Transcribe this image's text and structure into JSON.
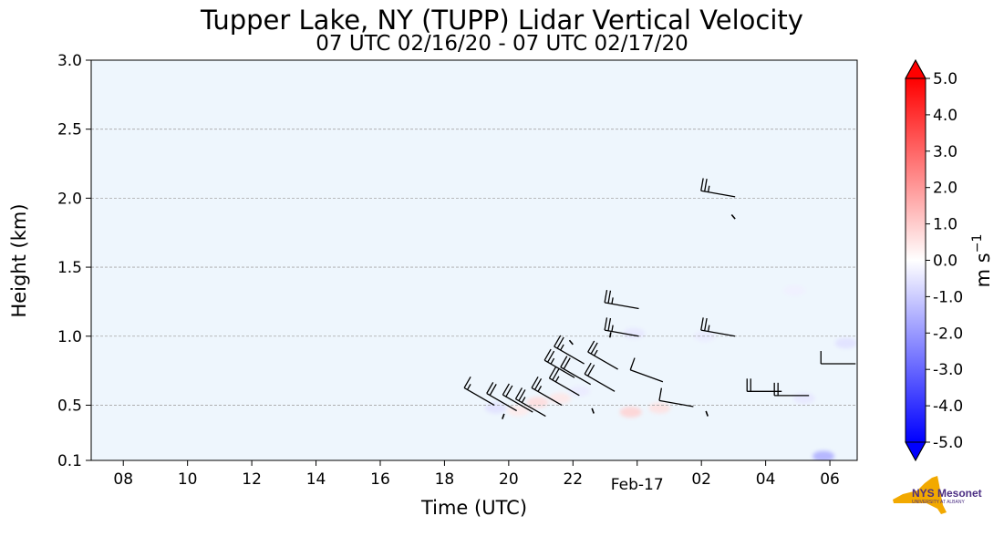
{
  "chart_data": {
    "type": "heatmap",
    "title": "Tupper Lake, NY (TUPP) Lidar Vertical Velocity",
    "subtitle": "07 UTC 02/16/20 - 07 UTC 02/17/20",
    "xlabel": "Time (UTC)",
    "ylabel": "Height (km)",
    "x_tick_labels": [
      "08",
      "10",
      "12",
      "14",
      "16",
      "18",
      "20",
      "22",
      "Feb-17",
      "02",
      "04",
      "06"
    ],
    "x_tick_hours": [
      8,
      10,
      12,
      14,
      16,
      18,
      20,
      22,
      24,
      26,
      28,
      30
    ],
    "xlim_hours": [
      7,
      30.85
    ],
    "y_ticks": [
      0.1,
      0.5,
      1.0,
      1.5,
      2.0,
      2.5,
      3.0
    ],
    "y_tick_labels": [
      "0.1",
      "0.5",
      "1.0",
      "1.5",
      "2.0",
      "2.5",
      "3.0"
    ],
    "ylim": [
      0.1,
      3.0
    ],
    "grid_y": true,
    "background_value": -0.2,
    "colorbar": {
      "label": "m s",
      "label_exponent": "−1",
      "min": -5.0,
      "max": 5.0,
      "tick_values": [
        5.0,
        4.0,
        3.0,
        2.0,
        1.0,
        0.0,
        -1.0,
        -2.0,
        -3.0,
        -4.0,
        -5.0
      ],
      "tick_labels": [
        "5.0",
        "4.0",
        "3.0",
        "2.0",
        "1.0",
        "0.0",
        "-1.0",
        "-2.0",
        "-3.0",
        "-4.0",
        "-5.0"
      ],
      "extend": "both",
      "colormap": "bwr"
    },
    "patches": [
      {
        "t": 19.6,
        "h": 0.48,
        "v": -0.6
      },
      {
        "t": 20.3,
        "h": 0.46,
        "v": 0.4
      },
      {
        "t": 20.9,
        "h": 0.52,
        "v": 0.7
      },
      {
        "t": 21.6,
        "h": 0.55,
        "v": 0.5
      },
      {
        "t": 22.2,
        "h": 0.6,
        "v": -0.4
      },
      {
        "t": 23.8,
        "h": 0.45,
        "v": 0.9
      },
      {
        "t": 24.7,
        "h": 0.48,
        "v": 0.6
      },
      {
        "t": 23.9,
        "h": 1.02,
        "v": -0.5
      },
      {
        "t": 26.1,
        "h": 1.0,
        "v": -0.4
      },
      {
        "t": 28.9,
        "h": 1.33,
        "v": -0.3
      },
      {
        "t": 30.5,
        "h": 0.95,
        "v": -0.6
      },
      {
        "t": 29.2,
        "h": 0.55,
        "v": -0.5
      },
      {
        "t": 29.8,
        "h": 0.13,
        "v": -1.6
      }
    ],
    "wind_barbs": [
      {
        "t": 19.55,
        "h": 0.5,
        "dir": 300,
        "speed": 15
      },
      {
        "t": 20.25,
        "h": 0.46,
        "dir": 300,
        "speed": 20
      },
      {
        "t": 20.75,
        "h": 0.45,
        "dir": 300,
        "speed": 20
      },
      {
        "t": 21.15,
        "h": 0.42,
        "dir": 300,
        "speed": 25
      },
      {
        "t": 21.65,
        "h": 0.5,
        "dir": 300,
        "speed": 25
      },
      {
        "t": 22.2,
        "h": 0.57,
        "dir": 300,
        "speed": 25
      },
      {
        "t": 22.55,
        "h": 0.65,
        "dir": 300,
        "speed": 20
      },
      {
        "t": 22.05,
        "h": 0.7,
        "dir": 300,
        "speed": 25
      },
      {
        "t": 22.35,
        "h": 0.8,
        "dir": 300,
        "speed": 25
      },
      {
        "t": 23.3,
        "h": 0.6,
        "dir": 300,
        "speed": 20
      },
      {
        "t": 23.4,
        "h": 0.76,
        "dir": 300,
        "speed": 25
      },
      {
        "t": 24.05,
        "h": 1.0,
        "dir": 280,
        "speed": 25
      },
      {
        "t": 24.05,
        "h": 1.2,
        "dir": 280,
        "speed": 25
      },
      {
        "t": 24.8,
        "h": 0.67,
        "dir": 290,
        "speed": 10
      },
      {
        "t": 25.75,
        "h": 0.49,
        "dir": 280,
        "speed": 10
      },
      {
        "t": 27.05,
        "h": 1.0,
        "dir": 280,
        "speed": 25
      },
      {
        "t": 27.05,
        "h": 2.01,
        "dir": 280,
        "speed": 25
      },
      {
        "t": 28.5,
        "h": 0.6,
        "dir": 270,
        "speed": 20
      },
      {
        "t": 29.35,
        "h": 0.57,
        "dir": 270,
        "speed": 20
      },
      {
        "t": 30.8,
        "h": 0.8,
        "dir": 270,
        "speed": 10
      }
    ],
    "wind_segments": [
      {
        "t": 22.0,
        "h": 0.94,
        "dir": 320
      },
      {
        "t": 23.15,
        "h": 0.99,
        "dir": 10
      },
      {
        "t": 27.05,
        "h": 1.85,
        "dir": 320
      },
      {
        "t": 19.8,
        "h": 0.4,
        "dir": 20
      },
      {
        "t": 22.65,
        "h": 0.44,
        "dir": 340
      },
      {
        "t": 26.2,
        "h": 0.42,
        "dir": 340
      }
    ]
  },
  "logo": {
    "name": "NYS Mesonet",
    "text": "NYS Mesonet",
    "subtext": "UNIVERSITY AT ALBANY",
    "color": "#4b2e83",
    "state_color": "#f2a900"
  }
}
